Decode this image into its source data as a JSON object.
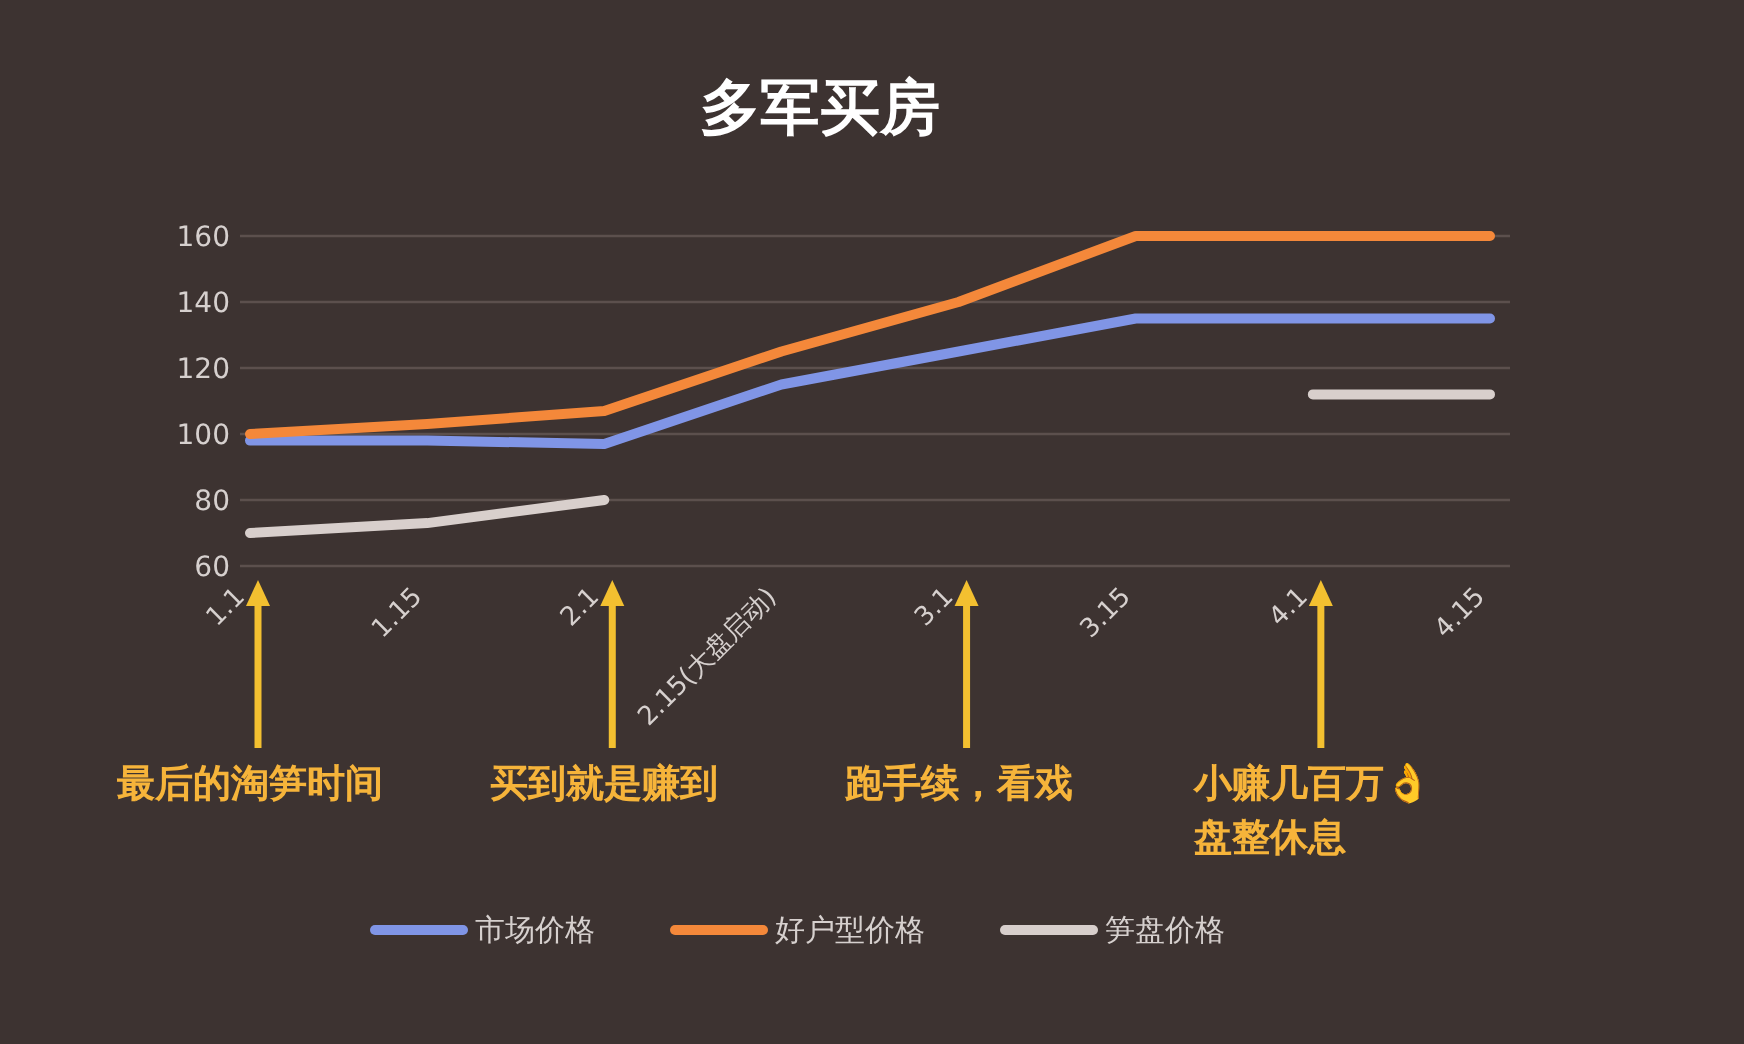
{
  "chart_data": {
    "type": "line",
    "title": "多军买房",
    "categories": [
      "1.1",
      "1.15",
      "2.1",
      "2.15(大盘启动)",
      "3.1",
      "3.15",
      "4.1",
      "4.15"
    ],
    "series": [
      {
        "name": "市场价格",
        "color": "#8095e6",
        "values": [
          98,
          98,
          97,
          115,
          125,
          135,
          135,
          135
        ]
      },
      {
        "name": "好户型价格",
        "color": "#f4883a",
        "values": [
          100,
          103,
          107,
          125,
          140,
          160,
          160,
          160
        ]
      },
      {
        "name": "笋盘价格",
        "color": "#d8cfcc",
        "values": [
          70,
          73,
          80,
          null,
          null,
          null,
          112,
          112
        ]
      }
    ],
    "ylim": [
      60,
      160
    ],
    "yticks": [
      60,
      80,
      100,
      120,
      140,
      160
    ],
    "grid": "y",
    "legend": "bottom",
    "annotations": [
      "最后的淘笋时间",
      "买到就是赚到",
      "跑手续，看戏",
      "小赚几百万👌\n盘整休息"
    ]
  }
}
